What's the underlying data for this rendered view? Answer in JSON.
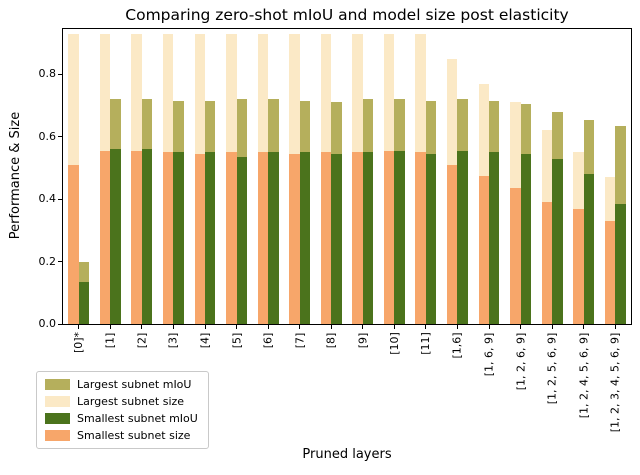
{
  "chart_data": {
    "type": "bar",
    "title": "Comparing zero-shot mIoU and model size post elasticity",
    "xlabel": "Pruned layers",
    "ylabel": "Performance & Size",
    "ylim": [
      0,
      0.945
    ],
    "yticks": [
      0.0,
      0.2,
      0.4,
      0.6,
      0.8
    ],
    "ytick_labels": [
      "0.0",
      "0.2",
      "0.4",
      "0.6",
      "0.8"
    ],
    "grid": false,
    "legend_position": "lower left below axis",
    "categories": [
      "[0]*",
      "[1]",
      "[2]",
      "[3]",
      "[4]",
      "[5]",
      "[6]",
      "[7]",
      "[8]",
      "[9]",
      "[10]",
      "[11]",
      "[1,6]",
      "[1, 6, 9]",
      "[1, 2, 6, 9]",
      "[1, 2, 5, 6, 9]",
      "[1, 2, 4, 5, 6, 9]",
      "[1, 2, 3, 4, 5, 6, 9]"
    ],
    "series": [
      {
        "name": "Largest subnet mIoU",
        "color": "#b5af5c",
        "values": [
          0.2,
          0.72,
          0.72,
          0.715,
          0.715,
          0.72,
          0.72,
          0.715,
          0.71,
          0.72,
          0.72,
          0.715,
          0.72,
          0.715,
          0.705,
          0.68,
          0.655,
          0.635
        ]
      },
      {
        "name": "Largest subnet size",
        "color": "#fbe9c6",
        "values": [
          0.93,
          0.93,
          0.93,
          0.93,
          0.93,
          0.93,
          0.93,
          0.93,
          0.93,
          0.93,
          0.93,
          0.93,
          0.85,
          0.77,
          0.71,
          0.62,
          0.55,
          0.47
        ]
      },
      {
        "name": "Smallest subnet mIoU",
        "color": "#4b731c",
        "values": [
          0.135,
          0.56,
          0.56,
          0.55,
          0.55,
          0.535,
          0.55,
          0.55,
          0.545,
          0.55,
          0.555,
          0.545,
          0.555,
          0.55,
          0.545,
          0.53,
          0.48,
          0.385
        ]
      },
      {
        "name": "Smallest subnet size",
        "color": "#f7a66a",
        "values": [
          0.51,
          0.555,
          0.555,
          0.55,
          0.545,
          0.55,
          0.55,
          0.545,
          0.55,
          0.55,
          0.555,
          0.55,
          0.51,
          0.475,
          0.435,
          0.39,
          0.37,
          0.33
        ]
      }
    ]
  }
}
